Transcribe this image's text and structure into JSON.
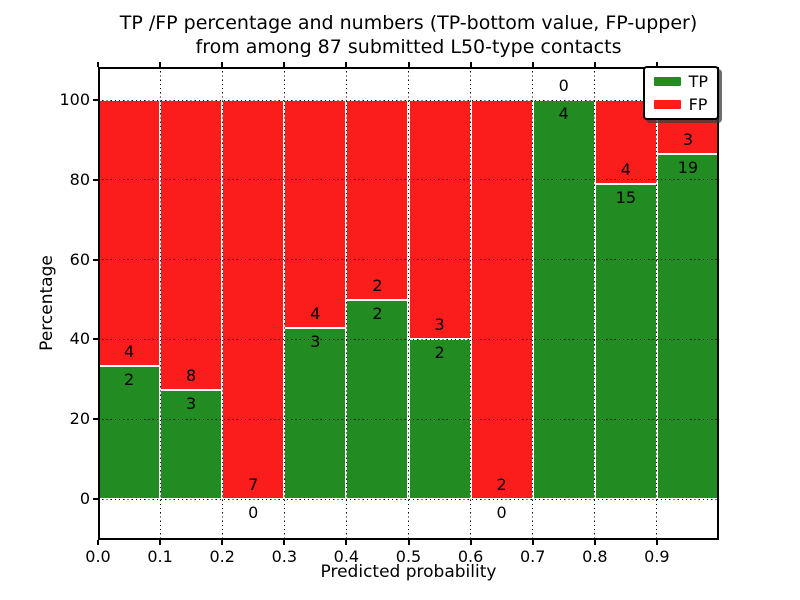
{
  "figure": {
    "title_line1": "TP /FP percentage and numbers (TP-bottom value, FP-upper)",
    "title_line2": "from among 87 submitted L50-type contacts"
  },
  "axes": {
    "xlabel": "Predicted probability",
    "ylabel": "Percentage",
    "xtick_labels": [
      "0.0",
      "0.1",
      "0.2",
      "0.3",
      "0.4",
      "0.5",
      "0.6",
      "0.7",
      "0.8",
      "0.9"
    ],
    "ytick_values": [
      0,
      20,
      40,
      60,
      80,
      100
    ]
  },
  "legend": {
    "items": [
      {
        "label": "TP",
        "color": "#228b22"
      },
      {
        "label": "FP",
        "color": "#fb1c1c"
      }
    ]
  },
  "colors": {
    "tp_green": "#228b22",
    "fp_red": "#fb1c1c",
    "grid": "#000000",
    "background": "#ffffff"
  },
  "chart_data": {
    "type": "bar",
    "stacked": true,
    "normalized_to_percent": true,
    "title": "TP /FP percentage and numbers (TP-bottom value, FP-upper) from among 87 submitted L50-type contacts",
    "xlabel": "Predicted probability",
    "ylabel": "Percentage",
    "ylim": [
      0,
      100
    ],
    "xlim": [
      0.0,
      1.0
    ],
    "bin_width": 0.1,
    "grid": true,
    "legend_position": "upper right",
    "categories": [
      "0.0-0.1",
      "0.1-0.2",
      "0.2-0.3",
      "0.3-0.4",
      "0.4-0.5",
      "0.5-0.6",
      "0.6-0.7",
      "0.7-0.8",
      "0.8-0.9",
      "0.9-1.0"
    ],
    "series": [
      {
        "name": "TP",
        "color": "#228b22",
        "counts": [
          2,
          3,
          0,
          3,
          2,
          2,
          0,
          4,
          15,
          19
        ]
      },
      {
        "name": "FP",
        "color": "#fb1c1c",
        "counts": [
          4,
          8,
          7,
          4,
          2,
          3,
          2,
          0,
          4,
          3
        ]
      }
    ],
    "tp_percent_of_bin": [
      33.33,
      27.27,
      0.0,
      42.86,
      50.0,
      40.0,
      0.0,
      100.0,
      78.95,
      86.36
    ],
    "total_submitted": 87
  }
}
